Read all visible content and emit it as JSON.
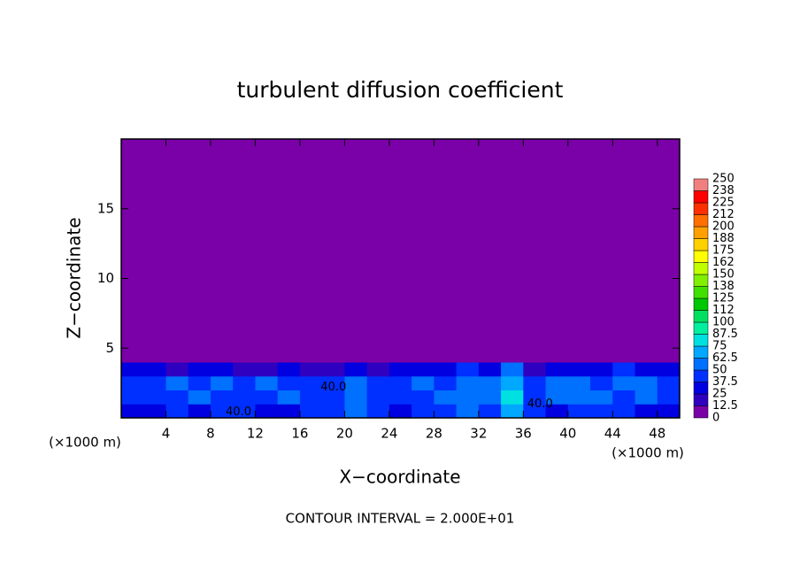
{
  "chart_data": {
    "type": "contour",
    "title": "turbulent diffusion coefficient",
    "x_label": "X−coordinate",
    "y_label": "Z−coordinate",
    "x_unit": "(×1000 m)",
    "y_unit": "(×1000 m)",
    "note": "CONTOUR INTERVAL = 2.000E+01",
    "xlim": [
      0,
      50
    ],
    "ylim": [
      0,
      20
    ],
    "xticks": [
      4,
      8,
      12,
      16,
      20,
      24,
      28,
      32,
      36,
      40,
      44,
      48
    ],
    "yticks": [
      5,
      10,
      15
    ],
    "x_edges": [
      0,
      2,
      4,
      6,
      8,
      10,
      12,
      14,
      16,
      18,
      20,
      22,
      24,
      26,
      28,
      30,
      32,
      34,
      36,
      38,
      40,
      42,
      44,
      46,
      48,
      50
    ],
    "z_edges": [
      0,
      1,
      2,
      3,
      4,
      5
    ],
    "values": [
      [
        30,
        35,
        40,
        35,
        45,
        40,
        30,
        35,
        40,
        45,
        50,
        40,
        35,
        40,
        45,
        50,
        45,
        70,
        40,
        35,
        40,
        45,
        40,
        35,
        30
      ],
      [
        40,
        45,
        40,
        50,
        45,
        40,
        45,
        50,
        45,
        40,
        50,
        45,
        40,
        45,
        50,
        55,
        50,
        75,
        45,
        50,
        55,
        50,
        45,
        50,
        40
      ],
      [
        45,
        40,
        50,
        45,
        55,
        40,
        50,
        45,
        40,
        45,
        50,
        40,
        45,
        50,
        45,
        50,
        55,
        70,
        40,
        50,
        55,
        45,
        50,
        55,
        45
      ],
      [
        35,
        25,
        20,
        30,
        35,
        15,
        20,
        25,
        15,
        20,
        30,
        20,
        25,
        35,
        30,
        40,
        35,
        50,
        15,
        25,
        30,
        35,
        40,
        35,
        30
      ],
      [
        0,
        0,
        0,
        0,
        5,
        0,
        0,
        0,
        0,
        0,
        0,
        0,
        0,
        0,
        0,
        0,
        5,
        0,
        0,
        0,
        0,
        5,
        10,
        5,
        0
      ]
    ],
    "levels": [
      0,
      {
        "value": 12.5,
        "label": "12.5"
      },
      25,
      {
        "value": 37.5,
        "label": "37.5"
      },
      50,
      {
        "value": 62.5,
        "label": "62.5"
      },
      75,
      {
        "value": 87.5,
        "label": "87.5"
      },
      100,
      {
        "value": 112.5,
        "label": "112"
      },
      125,
      {
        "value": 137.5,
        "label": "138"
      },
      150,
      {
        "value": 162.5,
        "label": "162"
      },
      175,
      {
        "value": 187.5,
        "label": "188"
      },
      200,
      {
        "value": 212.5,
        "label": "212"
      },
      225,
      {
        "value": 237.5,
        "label": "238"
      },
      250
    ],
    "colors": [
      "#7a00a8",
      "#3000c0",
      "#0000e0",
      "#0030ff",
      "#0070ff",
      "#00a8ff",
      "#00e0e0",
      "#00f0a0",
      "#00e060",
      "#00c800",
      "#40e000",
      "#80f000",
      "#c0ff00",
      "#ffff00",
      "#ffd000",
      "#ffa000",
      "#ff7000",
      "#ff3000",
      "#ff0000",
      "#f08080"
    ],
    "contour_labels": [
      "40.0",
      "40.0",
      "40.0"
    ]
  }
}
